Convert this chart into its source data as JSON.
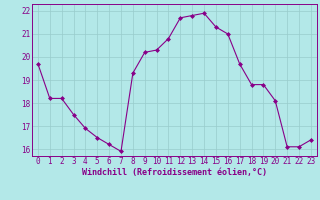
{
  "x": [
    0,
    1,
    2,
    3,
    4,
    5,
    6,
    7,
    8,
    9,
    10,
    11,
    12,
    13,
    14,
    15,
    16,
    17,
    18,
    19,
    20,
    21,
    22,
    23
  ],
  "y": [
    19.7,
    18.2,
    18.2,
    17.5,
    16.9,
    16.5,
    16.2,
    15.9,
    19.3,
    20.2,
    20.3,
    20.8,
    21.7,
    21.8,
    21.9,
    21.3,
    21.0,
    19.7,
    18.8,
    18.8,
    18.1,
    16.1,
    16.1,
    16.4
  ],
  "line_color": "#880088",
  "marker_color": "#880088",
  "bg_color": "#b3e8e8",
  "grid_color": "#99cccc",
  "xlabel": "Windchill (Refroidissement éolien,°C)",
  "ylim": [
    15.7,
    22.3
  ],
  "xlim": [
    -0.5,
    23.5
  ],
  "yticks": [
    16,
    17,
    18,
    19,
    20,
    21,
    22
  ],
  "xticks": [
    0,
    1,
    2,
    3,
    4,
    5,
    6,
    7,
    8,
    9,
    10,
    11,
    12,
    13,
    14,
    15,
    16,
    17,
    18,
    19,
    20,
    21,
    22,
    23
  ],
  "axis_fontsize": 5.5,
  "label_fontsize": 6.0
}
